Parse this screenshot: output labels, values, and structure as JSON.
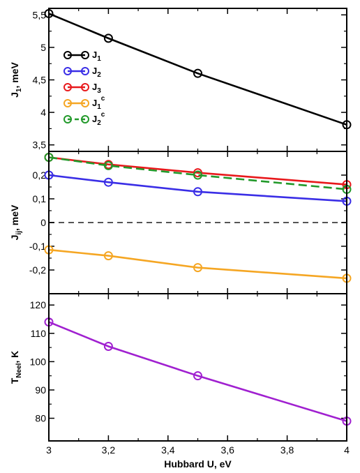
{
  "chart_data": [
    {
      "type": "line",
      "ylabel": "J",
      "ylabel_sub": "1",
      "ylabel_rest": ", meV",
      "xlim": [
        3,
        4
      ],
      "ylim": [
        3.4,
        5.6
      ],
      "ytick_values": [
        3.5,
        4,
        4.5,
        5,
        5.5
      ],
      "ytick_labels": [
        "3,5",
        "4",
        "4,5",
        "5",
        "5,5"
      ],
      "series": [
        {
          "name": "J",
          "name_sub": "1",
          "name_sup": "",
          "color": "#000000",
          "dashed": false,
          "x": [
            3,
            3.2,
            3.5,
            4
          ],
          "values": [
            5.52,
            5.14,
            4.6,
            3.81
          ]
        }
      ]
    },
    {
      "type": "line",
      "ylabel": "J",
      "ylabel_sub": "ij",
      "ylabel_rest": ", meV",
      "xlim": [
        3,
        4
      ],
      "ylim": [
        -0.3,
        0.3
      ],
      "ytick_values": [
        -0.2,
        -0.1,
        0,
        0.1,
        0.2
      ],
      "ytick_labels": [
        "-0,2",
        "-0,1",
        "0",
        "0,1",
        "0,2"
      ],
      "reference_line": {
        "y": 0,
        "color": "#555555",
        "dashed": true
      },
      "series": [
        {
          "name": "J",
          "name_sub": "2",
          "name_sup": "",
          "color": "#3a2ee6",
          "dashed": false,
          "x": [
            3,
            3.2,
            3.5,
            4
          ],
          "values": [
            0.2,
            0.17,
            0.13,
            0.09
          ]
        },
        {
          "name": "J",
          "name_sub": "3",
          "name_sup": "",
          "color": "#e8191c",
          "dashed": false,
          "x": [
            3,
            3.2,
            3.5,
            4
          ],
          "values": [
            0.275,
            0.245,
            0.21,
            0.16
          ]
        },
        {
          "name": "J",
          "name_sub": "1",
          "name_sup": "c",
          "color": "#f5a623",
          "dashed": false,
          "x": [
            3,
            3.2,
            3.5,
            4
          ],
          "values": [
            -0.115,
            -0.14,
            -0.19,
            -0.235
          ]
        },
        {
          "name": "J",
          "name_sub": "2",
          "name_sup": "c",
          "color": "#22992a",
          "dashed": true,
          "x": [
            3,
            3.2,
            3.5,
            4
          ],
          "values": [
            0.275,
            0.24,
            0.2,
            0.14
          ]
        }
      ]
    },
    {
      "type": "line",
      "ylabel": "T",
      "ylabel_sub": "Neel",
      "ylabel_rest": ", K",
      "xlabel": "Hubbard U, eV",
      "xlim": [
        3,
        4
      ],
      "ylim": [
        72,
        124
      ],
      "ytick_values": [
        80,
        90,
        100,
        110,
        120
      ],
      "ytick_labels": [
        "80",
        "90",
        "100",
        "110",
        "120"
      ],
      "xtick_values": [
        3,
        3.2,
        3.4,
        3.6,
        3.8,
        4
      ],
      "xtick_labels": [
        "3",
        "3,2",
        "3,4",
        "3,6",
        "3,8",
        "4"
      ],
      "series": [
        {
          "color": "#a020d0",
          "dashed": false,
          "x": [
            3,
            3.2,
            3.5,
            4
          ],
          "values": [
            114,
            105.4,
            95,
            79
          ]
        }
      ]
    }
  ],
  "legend": {
    "placement": "top-left",
    "entries": [
      {
        "name": "J",
        "sub": "1",
        "sup": "",
        "color": "#000000",
        "dashed": false
      },
      {
        "name": "J",
        "sub": "2",
        "sup": "",
        "color": "#3a2ee6",
        "dashed": false
      },
      {
        "name": "J",
        "sub": "3",
        "sup": "",
        "color": "#e8191c",
        "dashed": false
      },
      {
        "name": "J",
        "sub": "1",
        "sup": "c",
        "color": "#f5a623",
        "dashed": false
      },
      {
        "name": "J",
        "sub": "2",
        "sup": "c",
        "color": "#22992a",
        "dashed": true
      }
    ]
  }
}
